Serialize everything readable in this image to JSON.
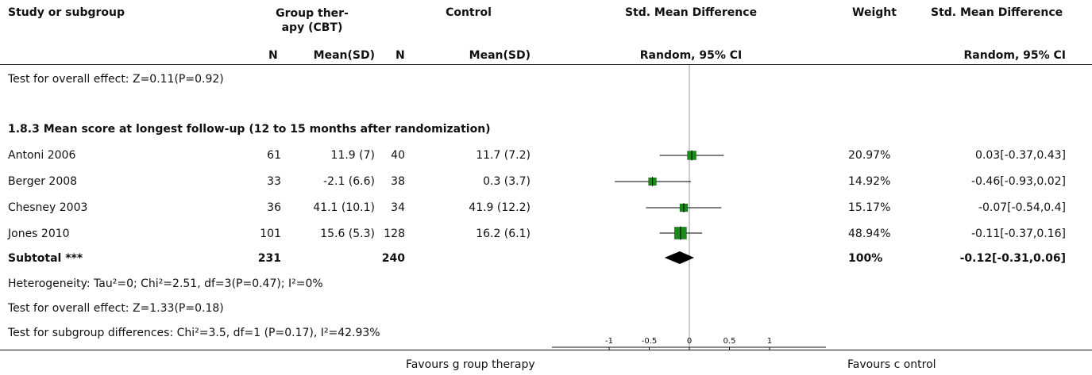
{
  "header": {
    "study": "Study or subgroup",
    "group": "Group ther-\napy (CBT)",
    "control": "Control",
    "smd": "Std. Mean Difference",
    "weight": "Weight",
    "smd_right": "Std. Mean Difference",
    "n1": "N",
    "mean1": "Mean(SD)",
    "n2": "N",
    "mean2": "Mean(SD)",
    "method": "Random, 95% CI",
    "method_right": "Random, 95% CI"
  },
  "prev_overall": "Test for overall effect: Z=0.11(P=0.92)",
  "subgroup": {
    "title": "1.8.3 Mean score at longest follow-up (12 to 15 months after randomization)",
    "studies": [
      {
        "name": "Antoni 2006",
        "n1": "61",
        "mean1": "11.9 (7)",
        "n2": "40",
        "mean2": "11.7 (7.2)",
        "weight": "20.97%",
        "ci": "0.03[-0.37,0.43]"
      },
      {
        "name": "Berger 2008",
        "n1": "33",
        "mean1": "-2.1 (6.6)",
        "n2": "38",
        "mean2": "0.3 (3.7)",
        "weight": "14.92%",
        "ci": "-0.46[-0.93,0.02]"
      },
      {
        "name": "Chesney 2003",
        "n1": "36",
        "mean1": "41.1 (10.1)",
        "n2": "34",
        "mean2": "41.9 (12.2)",
        "weight": "15.17%",
        "ci": "-0.07[-0.54,0.4]"
      },
      {
        "name": "Jones 2010",
        "n1": "101",
        "mean1": "15.6 (5.3)",
        "n2": "128",
        "mean2": "16.2 (6.1)",
        "weight": "48.94%",
        "ci": "-0.11[-0.37,0.16]"
      }
    ],
    "subtotal": {
      "label": "Subtotal ***",
      "n1": "231",
      "n2": "240",
      "weight": "100%",
      "ci": "-0.12[-0.31,0.06]"
    },
    "heterogeneity": "Heterogeneity: Tau²=0; Chi²=2.51, df=3(P=0.47); I²=0%",
    "overall": "Test for overall effect: Z=1.33(P=0.18)"
  },
  "subgroup_diff": "Test for subgroup differences: Chi²=3.5, df=1 (P=0.17), I²=42.93%",
  "footer": {
    "favours_left": "Favours g roup therapy",
    "favours_right": "Favours c ontrol"
  },
  "chart_data": {
    "type": "scatter",
    "subtype": "forest",
    "xlim": [
      -1,
      1
    ],
    "x_ticks": [
      "-1",
      "-0.5",
      "0",
      "0.5",
      "1"
    ],
    "x_tick_values": [
      -1,
      -0.5,
      0,
      0.5,
      1
    ],
    "colors": {
      "marker": "#1a8a1a",
      "marker_border": "#0a5a0a",
      "diamond": "#000000"
    },
    "studies": [
      {
        "name": "Antoni 2006",
        "smd": 0.03,
        "lo": -0.37,
        "hi": 0.43,
        "weight": 20.97
      },
      {
        "name": "Berger 2008",
        "smd": -0.46,
        "lo": -0.93,
        "hi": 0.02,
        "weight": 14.92
      },
      {
        "name": "Chesney 2003",
        "smd": -0.07,
        "lo": -0.54,
        "hi": 0.4,
        "weight": 15.17
      },
      {
        "name": "Jones 2010",
        "smd": -0.11,
        "lo": -0.37,
        "hi": 0.16,
        "weight": 48.94
      }
    ],
    "subtotal": {
      "smd": -0.12,
      "lo": -0.31,
      "hi": 0.06
    }
  }
}
